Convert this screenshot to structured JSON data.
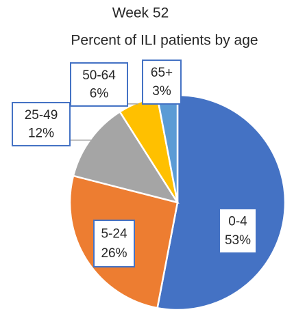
{
  "chart_data": {
    "type": "pie",
    "title": "Week 52",
    "subtitle": "Percent of ILI patients by age",
    "categories": [
      "0-4",
      "5-24",
      "25-49",
      "50-64",
      "65+"
    ],
    "values": [
      53,
      26,
      12,
      6,
      3
    ],
    "value_labels": [
      "53%",
      "26%",
      "12%",
      "6%",
      "3%"
    ],
    "colors": [
      "#4472c4",
      "#ed7d31",
      "#a5a5a5",
      "#ffc000",
      "#5b9bd5"
    ]
  }
}
